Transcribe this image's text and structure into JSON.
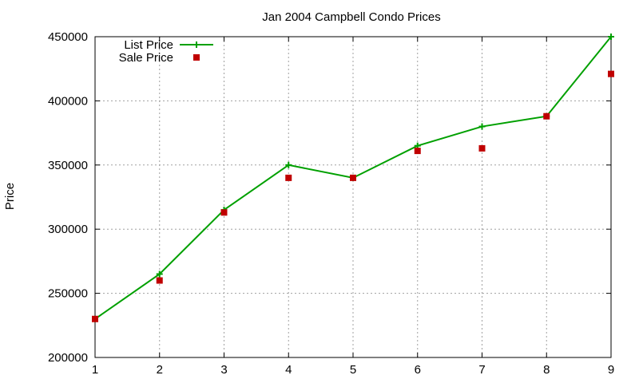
{
  "chart_data": {
    "type": "line",
    "title": "Jan 2004 Campbell Condo Prices",
    "xlabel": "",
    "ylabel": "Price",
    "x": [
      1,
      2,
      3,
      4,
      5,
      6,
      7,
      8,
      9
    ],
    "xlim": [
      1,
      9
    ],
    "ylim": [
      200000,
      450000
    ],
    "x_ticks": [
      1,
      2,
      3,
      4,
      5,
      6,
      7,
      8,
      9
    ],
    "y_ticks": [
      200000,
      250000,
      300000,
      350000,
      400000,
      450000
    ],
    "grid": true,
    "legend_position": "top-left",
    "series": [
      {
        "name": "List Price",
        "style": "lines-points",
        "color": "#00a000",
        "marker": "plus",
        "values": [
          230000,
          265000,
          315000,
          350000,
          340000,
          365000,
          380000,
          388000,
          450000
        ]
      },
      {
        "name": "Sale Price",
        "style": "points",
        "color": "#c00000",
        "marker": "square",
        "values": [
          230000,
          260000,
          313000,
          340000,
          340000,
          361000,
          363000,
          388000,
          421000
        ]
      }
    ]
  }
}
